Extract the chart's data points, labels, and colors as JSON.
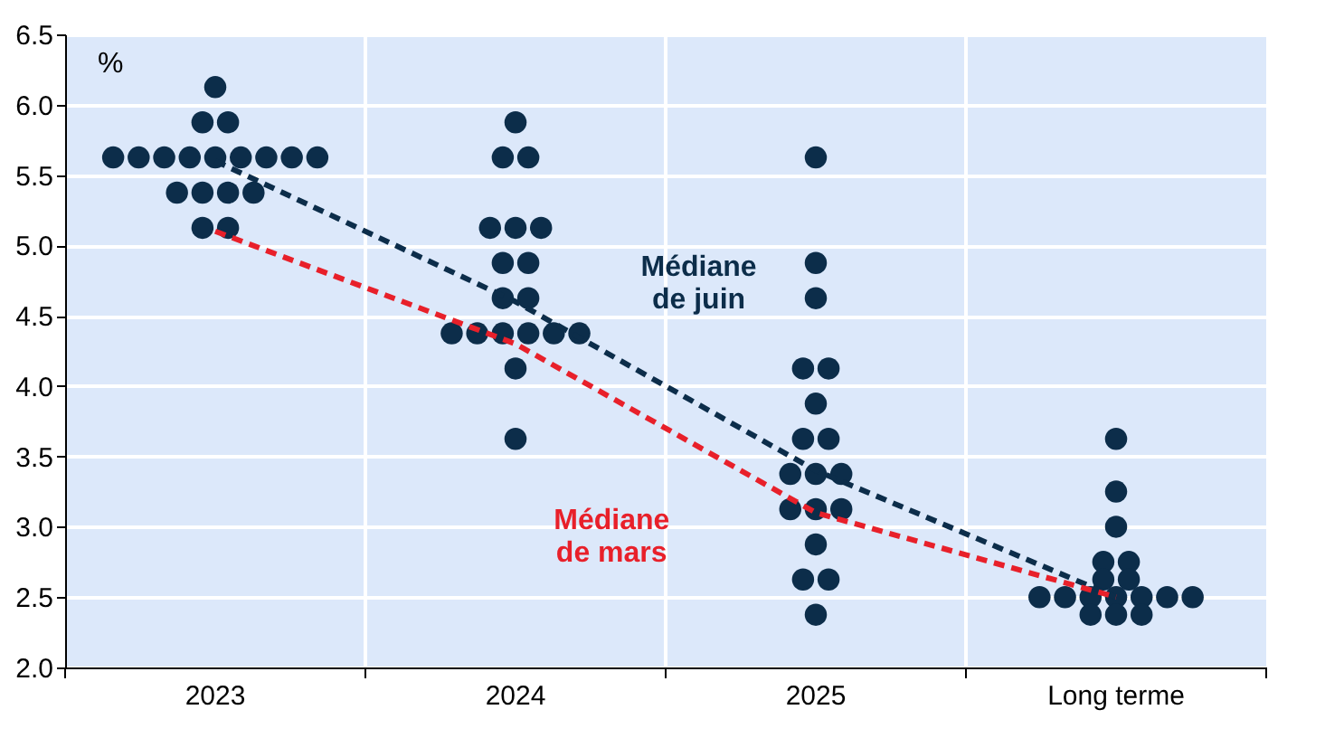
{
  "chart_data": {
    "type": "scatter",
    "ylabel": "%",
    "categories": [
      "2023",
      "2024",
      "2025",
      "Long terme"
    ],
    "ylim": [
      2.0,
      6.5
    ],
    "yticks": [
      {
        "value": 2,
        "label": "2.0"
      },
      2.5,
      {
        "value": 3,
        "label": "3.0"
      },
      3.5,
      {
        "value": 4,
        "label": "4.0"
      },
      4.5,
      {
        "value": 5,
        "label": "5.0"
      },
      5.5,
      {
        "value": 6,
        "label": "6.0"
      },
      6.5
    ],
    "grid": true,
    "series": [
      {
        "color": "#0c2d4a",
        "marker": "circle",
        "values": [
          6.125,
          5.875,
          5.625,
          3.625
        ]
      },
      {
        "color": "#0c2d4a",
        "marker": "circle",
        "values": [
          5.875,
          5.625,
          4.875,
          3.25
        ]
      },
      {
        "color": "#0c2d4a",
        "marker": "circle",
        "values": [
          5.875,
          5.625,
          4.625,
          3.0
        ]
      },
      {
        "color": "#0c2d4a",
        "marker": "circle",
        "values": [
          5.625,
          5.125,
          4.125,
          2.75
        ]
      },
      {
        "color": "#0c2d4a",
        "marker": "circle",
        "values": [
          5.625,
          5.125,
          4.125,
          2.75
        ]
      },
      {
        "color": "#0c2d4a",
        "marker": "circle",
        "values": [
          5.625,
          5.125,
          3.875,
          2.625
        ]
      },
      {
        "color": "#0c2d4a",
        "marker": "circle",
        "values": [
          5.625,
          4.875,
          3.625,
          2.625
        ]
      },
      {
        "color": "#0c2d4a",
        "marker": "circle",
        "values": [
          5.625,
          4.875,
          3.625,
          2.5
        ]
      },
      {
        "color": "#0c2d4a",
        "marker": "circle",
        "values": [
          5.625,
          4.625,
          3.375,
          2.5
        ]
      },
      {
        "color": "#0c2d4a",
        "marker": "circle",
        "values": [
          5.625,
          4.625,
          3.375,
          2.5
        ]
      },
      {
        "color": "#0c2d4a",
        "marker": "circle",
        "values": [
          5.625,
          4.375,
          3.375,
          2.5
        ]
      },
      {
        "color": "#0c2d4a",
        "marker": "circle",
        "values": [
          5.625,
          4.375,
          3.125,
          2.5
        ]
      },
      {
        "color": "#0c2d4a",
        "marker": "circle",
        "values": [
          5.375,
          4.375,
          3.125,
          2.5
        ]
      },
      {
        "color": "#0c2d4a",
        "marker": "circle",
        "values": [
          5.375,
          4.375,
          3.125,
          2.5
        ]
      },
      {
        "color": "#0c2d4a",
        "marker": "circle",
        "values": [
          5.375,
          4.375,
          2.875,
          2.375
        ]
      },
      {
        "color": "#0c2d4a",
        "marker": "circle",
        "values": [
          5.375,
          4.375,
          2.625,
          2.375
        ]
      },
      {
        "color": "#0c2d4a",
        "marker": "circle",
        "values": [
          5.125,
          4.125,
          2.625,
          2.375
        ]
      },
      {
        "color": "#0c2d4a",
        "marker": "circle",
        "values": [
          5.125,
          3.625,
          2.375,
          null
        ]
      },
      {
        "type": "line",
        "name": "Médiane\nde juin",
        "color": "#0c2d4a",
        "line_style": "dashed",
        "values": [
          5.6,
          4.6,
          3.4,
          2.5
        ]
      },
      {
        "type": "line",
        "name": "Médiane\nde mars",
        "color": "#e8202a",
        "line_style": "dashed",
        "values": [
          5.1,
          4.3,
          3.1,
          2.5
        ]
      }
    ]
  }
}
